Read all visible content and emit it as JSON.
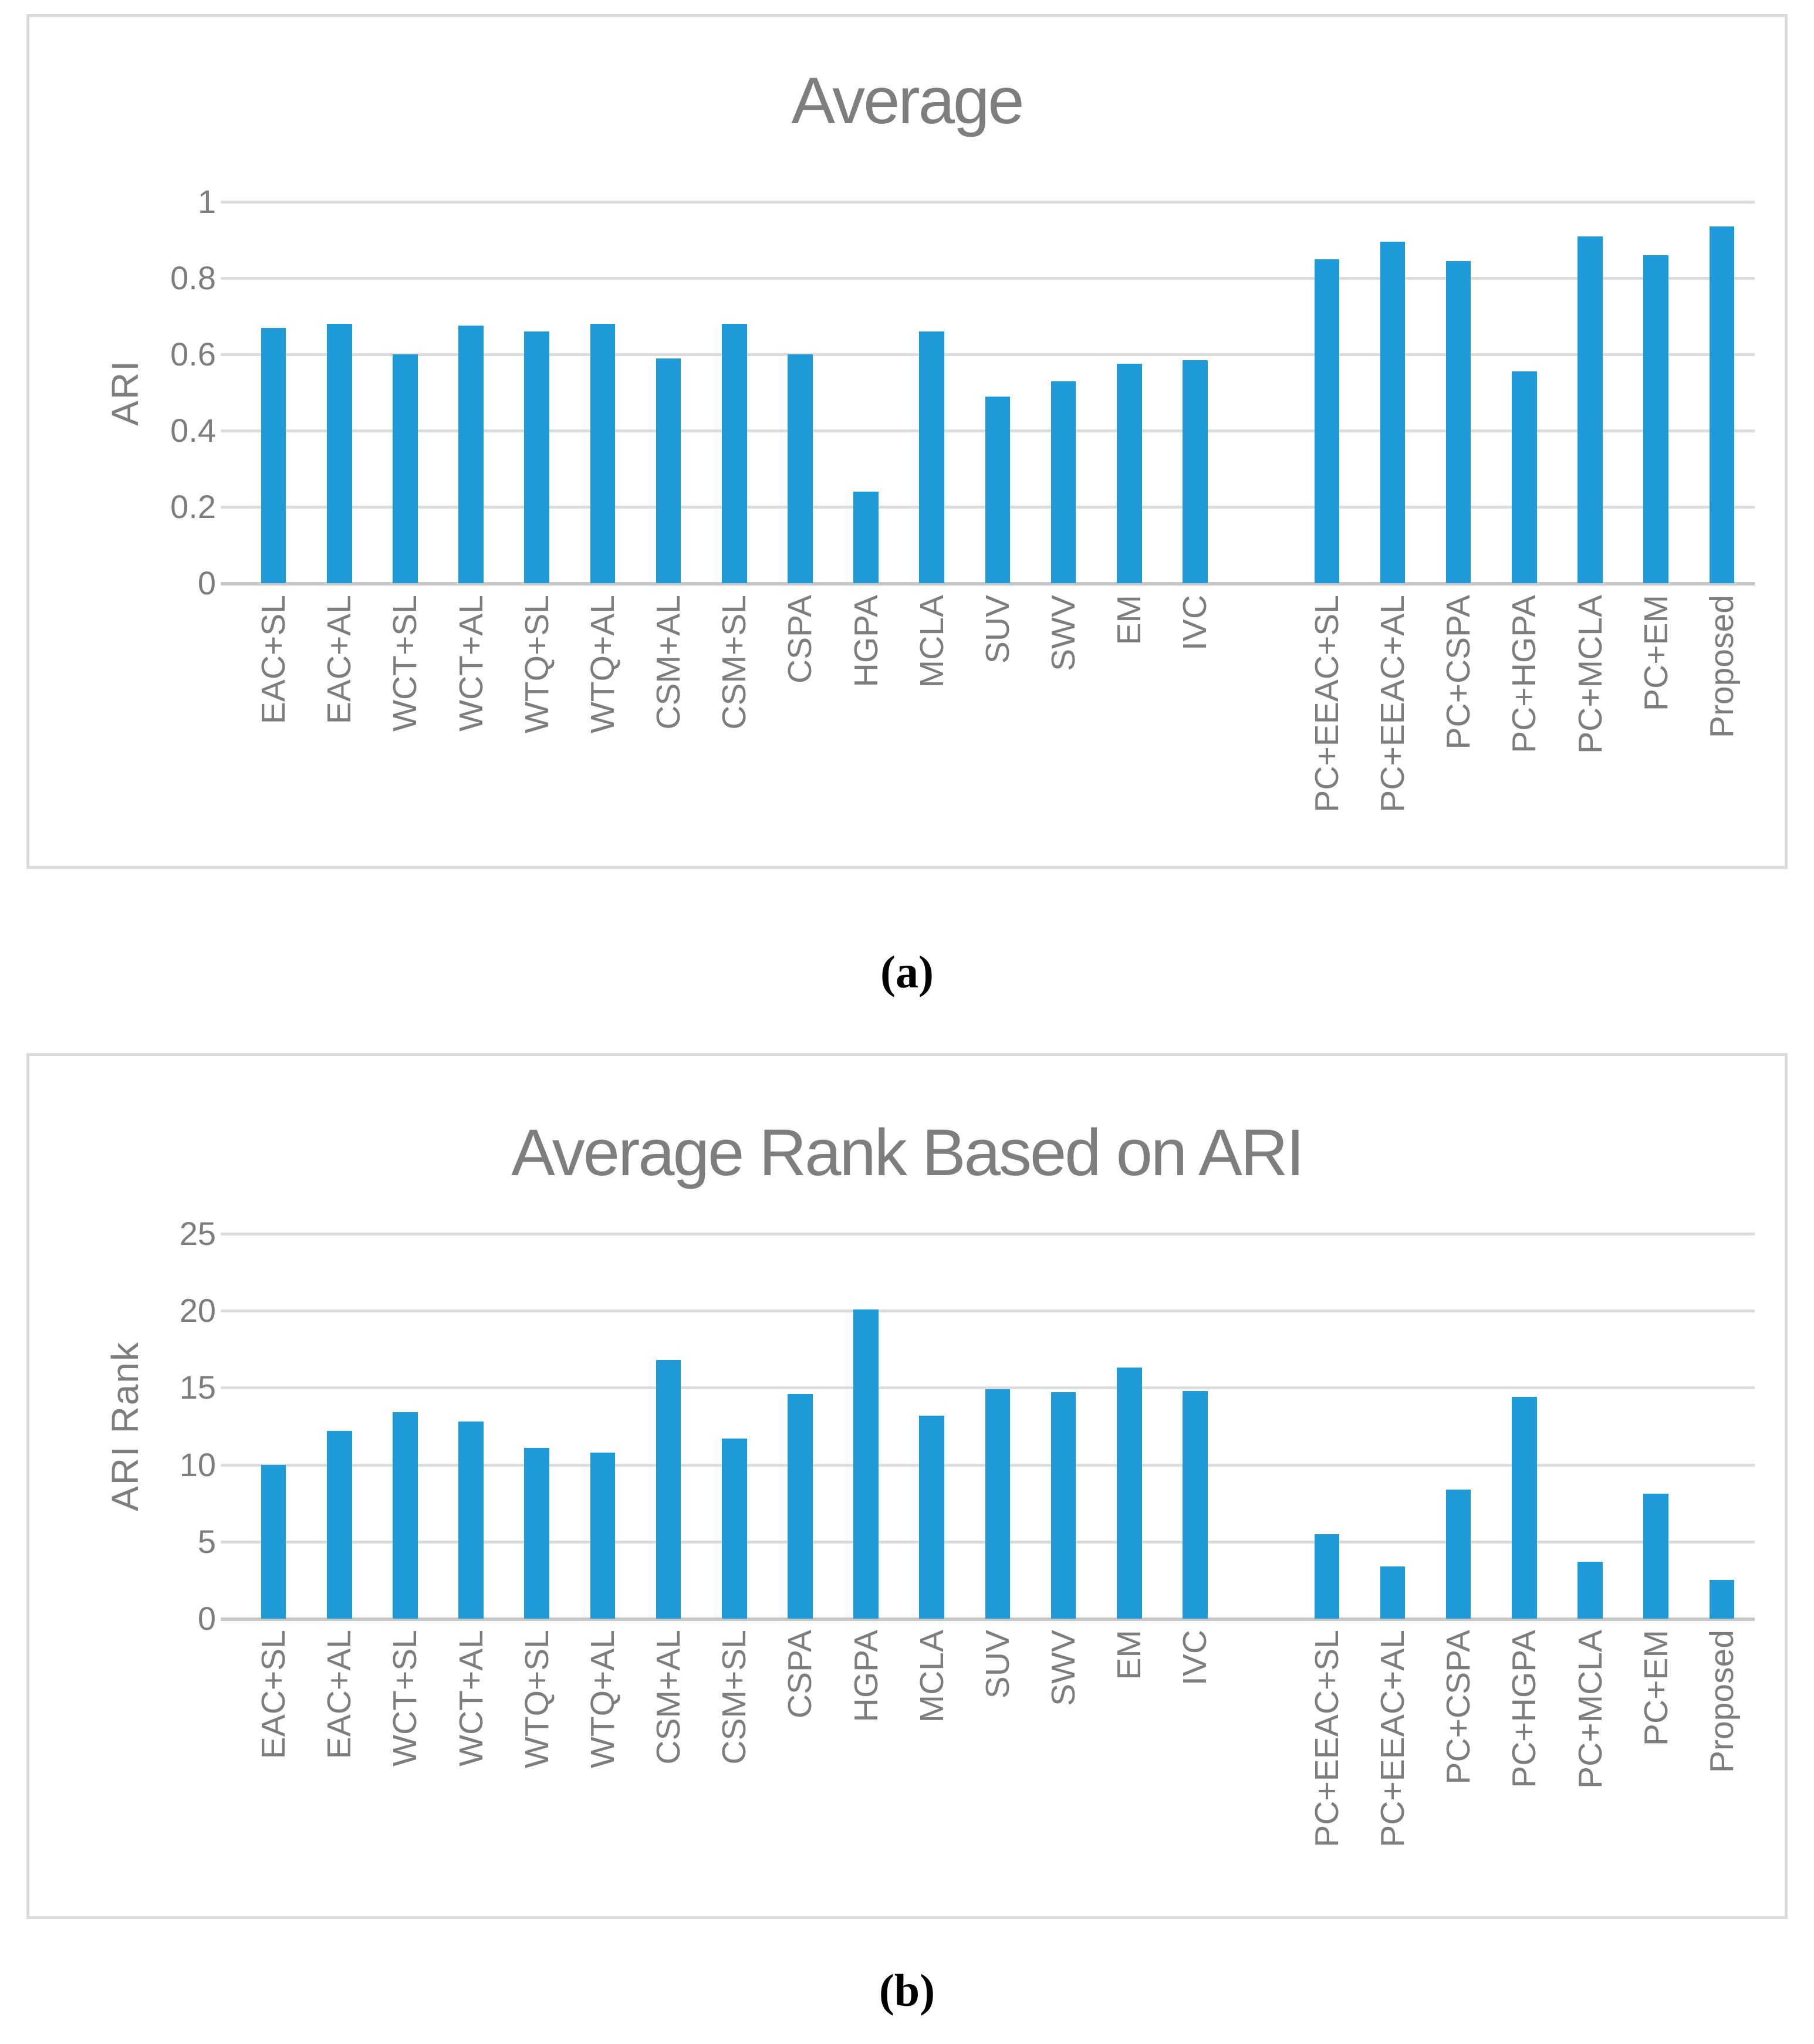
{
  "figure": {
    "bar_color": "#1E9AD9",
    "gridline_color": "#DCDCDC",
    "axis_line_color": "#C8C8C8",
    "text_color": "#7D7D7D",
    "panel_border_color": "#DBDBDB"
  },
  "chart_data": [
    {
      "type": "bar",
      "title": "Average",
      "xlabel": "",
      "ylabel": "ARI",
      "ylim": [
        0,
        1
      ],
      "ytick_labels": [
        "1",
        "0.8",
        "0.6",
        "0.4",
        "0.2",
        "0"
      ],
      "grid": "horizontal",
      "legend": "none",
      "panel_label": "(a)",
      "groups": [
        {
          "categories": [
            "EAC+SL",
            "EAC+AL",
            "WCT+SL",
            "WCT+AL",
            "WTQ+SL",
            "WTQ+AL",
            "CSM+AL",
            "CSM+SL",
            "CSPA",
            "HGPA",
            "MCLA",
            "SUV",
            "SWV",
            "EM",
            "IVC"
          ],
          "values": [
            0.67,
            0.68,
            0.6,
            0.675,
            0.66,
            0.68,
            0.59,
            0.68,
            0.6,
            0.24,
            0.66,
            0.49,
            0.53,
            0.575,
            0.585
          ]
        },
        {
          "categories": [
            "PC+EEAC+SL",
            "PC+EEAC+AL",
            "PC+CSPA",
            "PC+HGPA",
            "PC+MCLA",
            "PC+EM",
            "Proposed"
          ],
          "values": [
            0.85,
            0.895,
            0.845,
            0.555,
            0.91,
            0.86,
            0.935
          ]
        }
      ]
    },
    {
      "type": "bar",
      "title": "Average Rank Based on ARI",
      "xlabel": "",
      "ylabel": "ARI Rank",
      "ylim": [
        0,
        25
      ],
      "ytick_labels": [
        "25",
        "20",
        "15",
        "10",
        "5",
        "0"
      ],
      "grid": "horizontal",
      "legend": "none",
      "panel_label": "(b)",
      "groups": [
        {
          "categories": [
            "EAC+SL",
            "EAC+AL",
            "WCT+SL",
            "WCT+AL",
            "WTQ+SL",
            "WTQ+AL",
            "CSM+AL",
            "CSM+SL",
            "CSPA",
            "HGPA",
            "MCLA",
            "SUV",
            "SWV",
            "EM",
            "IVC"
          ],
          "values": [
            10.0,
            12.2,
            13.4,
            12.8,
            11.1,
            10.8,
            16.8,
            11.7,
            14.6,
            20.1,
            13.2,
            14.9,
            14.7,
            16.3,
            14.8
          ]
        },
        {
          "categories": [
            "PC+EEAC+SL",
            "PC+EEAC+AL",
            "PC+CSPA",
            "PC+HGPA",
            "PC+MCLA",
            "PC+EM",
            "Proposed"
          ],
          "values": [
            5.5,
            3.4,
            8.4,
            14.4,
            3.7,
            8.1,
            2.5
          ]
        }
      ]
    }
  ]
}
